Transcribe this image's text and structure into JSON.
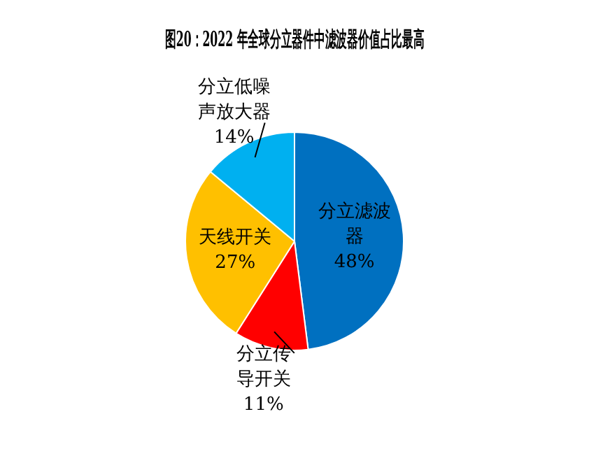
{
  "chart_data": {
    "type": "pie",
    "title": "图20：2022 年全球分立器件中滤波器价值占比最高",
    "categories": [
      "分立滤波器",
      "分立传导开关",
      "天线开关",
      "分立低噪声放大器"
    ],
    "values": [
      48,
      11,
      27,
      14
    ],
    "value_labels": [
      "48%",
      "11%",
      "27%",
      "14%"
    ],
    "colors": [
      "#0070c0",
      "#ff0000",
      "#ffc000",
      "#00b0f0"
    ],
    "legend": false
  }
}
